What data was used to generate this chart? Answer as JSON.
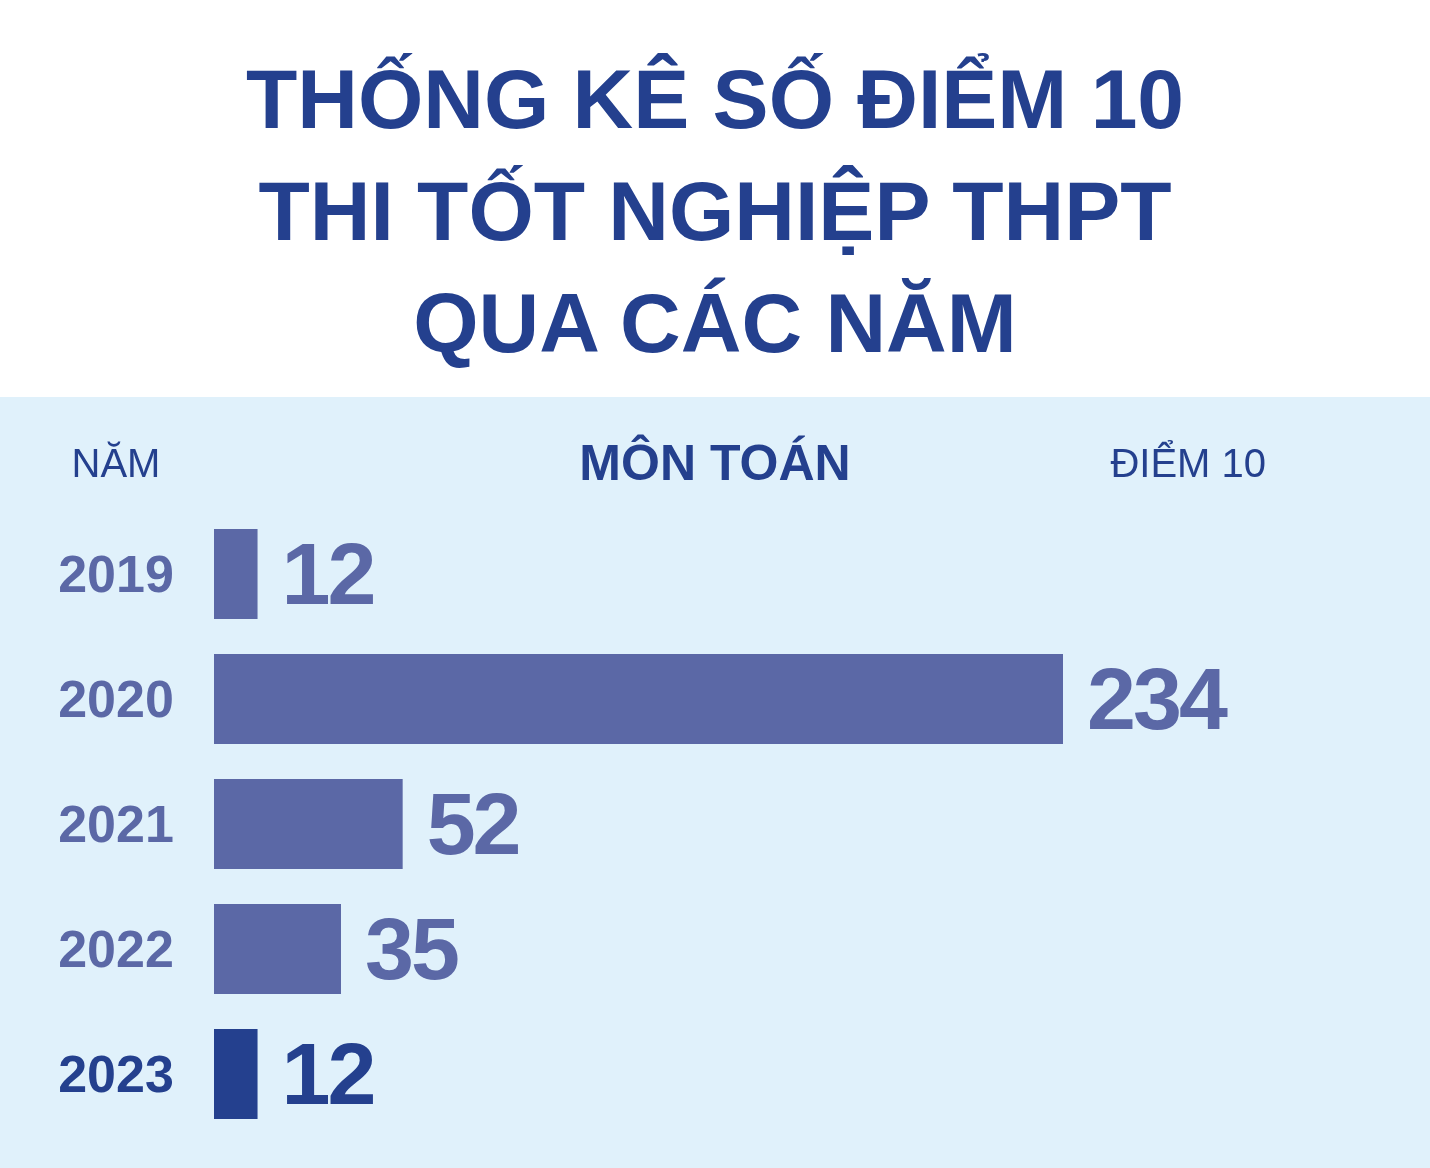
{
  "chart_data": {
    "type": "bar",
    "orientation": "horizontal",
    "title": "THỐNG KÊ SỐ ĐIỂM 10\nTHI TỐT NGHIỆP THPT\nQUA CÁC NĂM",
    "subtitle": "MÔN TOÁN",
    "ylabel": "NĂM",
    "xlabel": "ĐIỂM 10",
    "categories": [
      "2019",
      "2020",
      "2021",
      "2022",
      "2023"
    ],
    "values": [
      12,
      234,
      52,
      35,
      12
    ],
    "colors": [
      "#5b68a6",
      "#5b68a6",
      "#5b68a6",
      "#5b68a6",
      "#24408e"
    ],
    "data_labels": true
  }
}
